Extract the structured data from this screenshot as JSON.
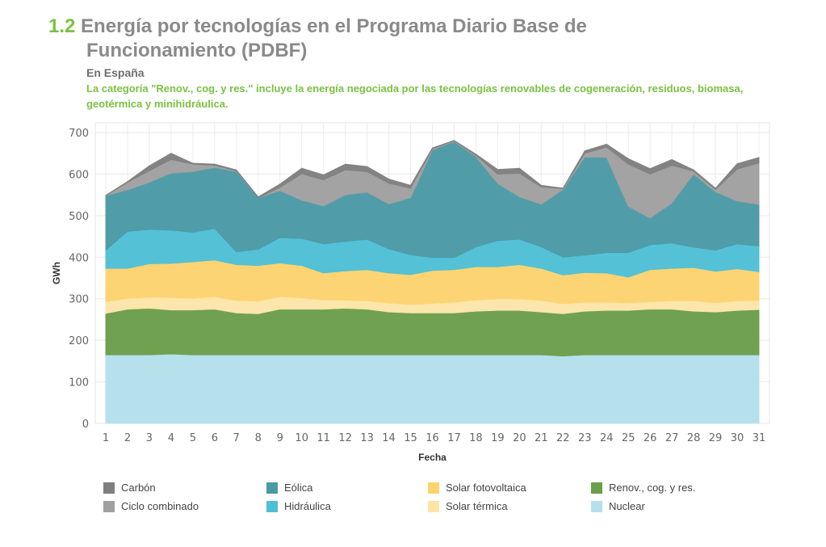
{
  "header": {
    "number": "1.2",
    "title_line1": "Energía por tecnologías en el Programa Diario Base de",
    "title_line2": "Funcionamiento (PDBF)",
    "subtitle": "En España",
    "note": "La categoría \"Renov., cog. y res.\" incluye la energía negociada por las tecnologías renovables de cogeneración, residuos, biomasa, geotérmica y minihidráulica."
  },
  "chart_data": {
    "type": "area",
    "stacked": true,
    "title": "Energía por tecnologías en el Programa Diario Base de Funcionamiento (PDBF)",
    "xlabel": "Fecha",
    "ylabel": "GWh",
    "ylim": [
      0,
      700
    ],
    "yticks": [
      0,
      100,
      200,
      300,
      400,
      500,
      600,
      700
    ],
    "x": [
      1,
      2,
      3,
      4,
      5,
      6,
      7,
      8,
      9,
      10,
      11,
      12,
      13,
      14,
      15,
      16,
      17,
      18,
      19,
      20,
      21,
      22,
      23,
      24,
      25,
      26,
      27,
      28,
      29,
      30,
      31
    ],
    "grid": true,
    "legend_position": "bottom",
    "series": [
      {
        "name": "Nuclear",
        "color": "#b5dfec",
        "values": [
          165,
          165,
          165,
          167,
          165,
          165,
          165,
          165,
          165,
          165,
          165,
          165,
          165,
          165,
          165,
          165,
          165,
          165,
          165,
          165,
          165,
          162,
          165,
          165,
          165,
          165,
          165,
          165,
          165,
          165,
          165
        ]
      },
      {
        "name": "Renov., cog. y res.",
        "color": "#6a9e4b",
        "values": [
          100,
          110,
          112,
          106,
          108,
          110,
          101,
          99,
          110,
          110,
          110,
          112,
          110,
          103,
          101,
          101,
          101,
          105,
          107,
          107,
          103,
          102,
          105,
          107,
          107,
          110,
          110,
          105,
          103,
          107,
          109
        ]
      },
      {
        "name": "Solar térmica",
        "color": "#fde5a8",
        "values": [
          28,
          26,
          27,
          30,
          28,
          30,
          30,
          30,
          30,
          27,
          22,
          20,
          20,
          22,
          20,
          23,
          26,
          27,
          28,
          28,
          28,
          24,
          22,
          20,
          18,
          18,
          20,
          25,
          23,
          23,
          22
        ]
      },
      {
        "name": "Solar fotovoltaica",
        "color": "#fdd36e",
        "values": [
          80,
          72,
          80,
          82,
          88,
          88,
          86,
          86,
          81,
          78,
          65,
          70,
          75,
          72,
          72,
          79,
          78,
          80,
          77,
          82,
          77,
          69,
          71,
          70,
          62,
          77,
          78,
          80,
          75,
          77,
          69
        ]
      },
      {
        "name": "Hidráulica",
        "color": "#4fbfd6",
        "values": [
          44,
          89,
          83,
          80,
          71,
          76,
          31,
          39,
          61,
          65,
          70,
          71,
          73,
          58,
          48,
          31,
          29,
          48,
          63,
          61,
          52,
          43,
          42,
          49,
          59,
          60,
          61,
          49,
          51,
          60,
          62
        ]
      },
      {
        "name": "Eólica",
        "color": "#4a9aa6",
        "values": [
          131,
          100,
          113,
          137,
          146,
          147,
          193,
          124,
          113,
          92,
          91,
          112,
          113,
          108,
          137,
          259,
          279,
          217,
          137,
          102,
          102,
          163,
          236,
          229,
          111,
          64,
          96,
          176,
          140,
          103,
          100
        ]
      },
      {
        "name": "Ciclo combinado",
        "color": "#a0a0a0",
        "values": [
          0,
          18,
          28,
          33,
          18,
          5,
          2,
          0,
          8,
          64,
          63,
          60,
          50,
          50,
          23,
          3,
          2,
          3,
          23,
          57,
          42,
          2,
          9,
          25,
          102,
          106,
          91,
          7,
          6,
          77,
          100
        ]
      },
      {
        "name": "Carbón",
        "color": "#7f7f7f",
        "values": [
          1,
          2,
          12,
          15,
          2,
          3,
          2,
          2,
          8,
          13,
          12,
          14,
          12,
          10,
          7,
          2,
          1,
          3,
          11,
          12,
          4,
          1,
          6,
          7,
          13,
          13,
          14,
          3,
          3,
          13,
          13
        ]
      }
    ]
  },
  "legend": {
    "items": [
      {
        "label": "Carbón",
        "color": "#7f7f7f"
      },
      {
        "label": "Ciclo combinado",
        "color": "#a0a0a0"
      },
      {
        "label": "Eólica",
        "color": "#4a9aa6"
      },
      {
        "label": "Hidráulica",
        "color": "#4fbfd6"
      },
      {
        "label": "Solar fotovoltaica",
        "color": "#fdd36e"
      },
      {
        "label": "Solar térmica",
        "color": "#fde5a8"
      },
      {
        "label": "Renov., cog. y res.",
        "color": "#6a9e4b"
      },
      {
        "label": "Nuclear",
        "color": "#b5dfec"
      }
    ]
  }
}
